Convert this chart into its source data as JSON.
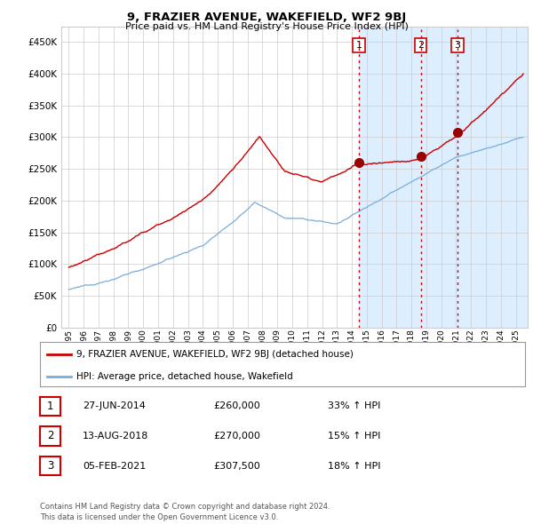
{
  "title": "9, FRAZIER AVENUE, WAKEFIELD, WF2 9BJ",
  "subtitle": "Price paid vs. HM Land Registry's House Price Index (HPI)",
  "background_color": "#ffffff",
  "plot_bg_color": "#ffffff",
  "grid_color": "#cccccc",
  "ylim": [
    0,
    475000
  ],
  "yticks": [
    0,
    50000,
    100000,
    150000,
    200000,
    250000,
    300000,
    350000,
    400000,
    450000
  ],
  "transactions": [
    {
      "date_num": 2014.49,
      "price": 260000,
      "label": "1"
    },
    {
      "date_num": 2018.62,
      "price": 270000,
      "label": "2"
    },
    {
      "date_num": 2021.09,
      "price": 307500,
      "label": "3"
    }
  ],
  "vline_color": "#cc0000",
  "hpi_line_color": "#7aaddb",
  "price_line_color": "#cc0000",
  "shade_color": "#ddeeff",
  "legend_items": [
    {
      "label": "9, FRAZIER AVENUE, WAKEFIELD, WF2 9BJ (detached house)",
      "color": "#cc0000"
    },
    {
      "label": "HPI: Average price, detached house, Wakefield",
      "color": "#7aaddb"
    }
  ],
  "table_rows": [
    {
      "num": "1",
      "date": "27-JUN-2014",
      "price": "£260,000",
      "pct": "33% ↑ HPI"
    },
    {
      "num": "2",
      "date": "13-AUG-2018",
      "price": "£270,000",
      "pct": "15% ↑ HPI"
    },
    {
      "num": "3",
      "date": "05-FEB-2021",
      "price": "£307,500",
      "pct": "18% ↑ HPI"
    }
  ],
  "footer": "Contains HM Land Registry data © Crown copyright and database right 2024.\nThis data is licensed under the Open Government Licence v3.0.",
  "xlim_start": 1994.5,
  "xlim_end": 2025.8
}
